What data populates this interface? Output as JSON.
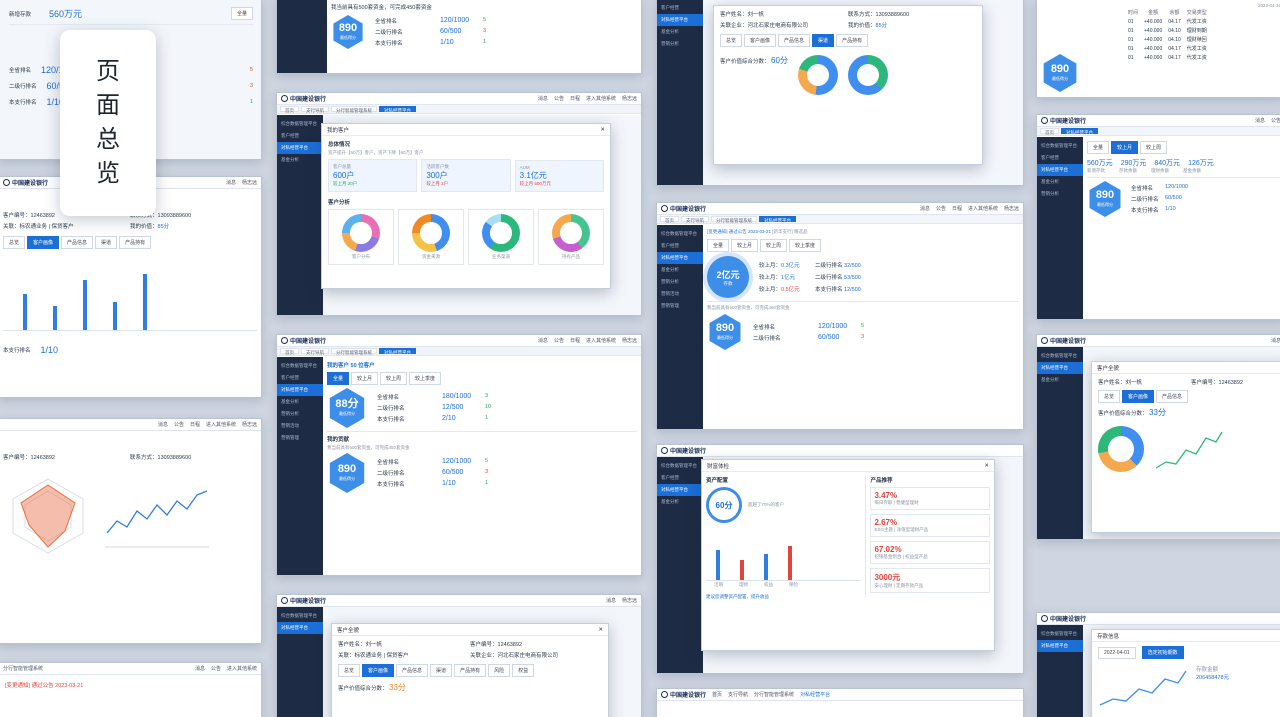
{
  "title": {
    "chars": [
      "页",
      "面",
      "总",
      "览"
    ]
  },
  "app": {
    "brand": "中国建设银行",
    "top_nav": [
      "消息",
      "公告",
      "日程",
      "进入其他系统",
      "杨志远",
      "退出"
    ],
    "tabs": [
      "首页",
      "支行导航",
      "分行智能管理系统",
      "对私经营平台"
    ],
    "sidebar": [
      "综合数据管理平台",
      "客户经营",
      "对私经营平台",
      "基金分析",
      "营销分析",
      "营销活动",
      "营销管理",
      "营销分析",
      "营销工具",
      "营销模型",
      "营销管理方式"
    ],
    "notice_label": "[变更通知] 通过公告 2023-03-21",
    "notice_extra": "[新华支行] 精选品"
  },
  "kpi": {
    "hex_values": [
      "890",
      "88分"
    ],
    "hex_label": "最低得分",
    "rank_title": "我当前具有500套资金，可完成450套资金",
    "rows": [
      {
        "label": "全省排名",
        "value": "120/1000",
        "prev": "较上月",
        "delta": "5"
      },
      {
        "label": "二级行排名",
        "value": "60/500",
        "prev": "较上月",
        "delta": "3"
      },
      {
        "label": "本支行排名",
        "value": "1/10",
        "prev": "较上月",
        "delta": "1"
      }
    ],
    "rows2": [
      {
        "label": "全省排名",
        "value": "180/1000",
        "prev": "较上月",
        "delta": "3"
      },
      {
        "label": "二级行排名",
        "value": "12/500",
        "prev": "较上月",
        "delta": "10"
      },
      {
        "label": "本支行排名",
        "value": "2/10",
        "prev": "较上月",
        "delta": "1"
      }
    ],
    "my_score_title": "我的贡献",
    "my_customers": "我的客户 50 位客户",
    "filters": [
      "全量",
      "较上月",
      "较上周",
      "较上季度"
    ]
  },
  "customers": {
    "modal_title": "我的客户",
    "section_overview": "总体情况",
    "overview_text": "资产提升【50万】客户，资产下降【60万】客户",
    "stats": [
      {
        "label": "客户总量",
        "value": "600户",
        "delta": "较上月 20户"
      },
      {
        "label": "活跃客户数",
        "value": "300户",
        "delta": "较上月 2户"
      },
      {
        "label": "AUM",
        "value": "3.1亿元",
        "delta": "较上月 500万元"
      }
    ],
    "section_analysis": "客户分析",
    "donuts": [
      "客户分布",
      "资金来源",
      "业务渠道",
      "持有产品"
    ]
  },
  "profile": {
    "title": "客户全貌",
    "name_label": "客户姓名：",
    "name": "刘一帆",
    "id_label": "客户编号：",
    "id": "12463892",
    "phone_label": "联系方式：",
    "phone": "13093889600",
    "relation_label": "关联：",
    "relation": "标农通业务 | 保贷客户",
    "company_label": "关联企业：",
    "company": "河北石家庄电商有限公司",
    "value_label": "我的价值：",
    "value": "85分",
    "tabs": [
      "总览",
      "客户画像",
      "产品信息",
      "渠道",
      "产品持有",
      "风险",
      "权益"
    ],
    "score_label": "客户价值综合分数：",
    "score": "33分",
    "score2": "60分"
  },
  "wealth": {
    "modal_title": "财富体检",
    "section": "资产配置",
    "score": "60分",
    "score_note": "超越了70%的客户",
    "advice": "建议您调整资产配置，提升收益",
    "recommend_title": "产品推荐",
    "products": [
      {
        "rate": "3.47%",
        "name": "每日存取 | 稳健型理财"
      },
      {
        "rate": "2.67%",
        "name": "ESG主题 | 净值型理财产品"
      },
      {
        "rate": "67.02%",
        "name": "招银基金组合 | 权益型产品"
      },
      {
        "rate": "3000元",
        "name": "安心理财 | 定期存款产品"
      }
    ],
    "bar_cats": [
      "活期",
      "理财",
      "权益",
      "保险"
    ]
  },
  "assets": {
    "big": "2亿元",
    "big_label": "存款",
    "lines": [
      {
        "label": "较上月：",
        "value": "0.3亿元"
      },
      {
        "label": "较上月：",
        "value": "1亿元"
      },
      {
        "label": "较上月：",
        "value": "0.5亿元"
      }
    ],
    "ranks": [
      "32/500",
      "53/500",
      "12/500"
    ],
    "summary": [
      "560万元",
      "290万元",
      "840万元",
      "126万元"
    ],
    "summary_labels": [
      "新增存款",
      "存款余额",
      "理财余额",
      "基金余额"
    ]
  },
  "table": {
    "headers": [
      "时间",
      "金额",
      "余额",
      "交易类型"
    ],
    "rows": [
      [
        "01",
        "+40.000",
        "04.17",
        "代发工资"
      ],
      [
        "01",
        "+40.000",
        "04.10",
        "理财到期"
      ],
      [
        "01",
        "+40.000",
        "04.10",
        "理财赎回"
      ],
      [
        "01",
        "+40.000",
        "04.17",
        "代发工资"
      ],
      [
        "01",
        "+40.000",
        "04.17",
        "代发工资"
      ]
    ],
    "date": "2022-04-26"
  },
  "deposit": {
    "title": "存款信息",
    "date": "2022-04-01",
    "amount_label": "存款金额",
    "amount": "206458478元",
    "button": "选定初始期数"
  },
  "radar": {
    "labels": [
      "信贷(4)",
      "消费(4)",
      "配套(6)",
      "理财(4)",
      "渠道(8)",
      "存款(4)",
      "安全(4)"
    ]
  }
}
